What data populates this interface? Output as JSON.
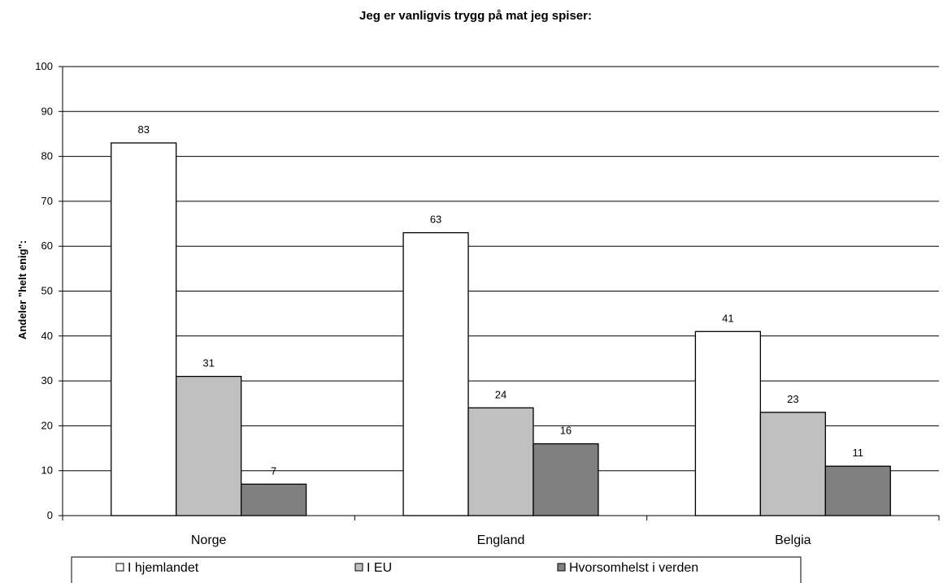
{
  "chart_data": {
    "type": "bar",
    "title": "Jeg er vanligvis trygg på mat jeg spiser:",
    "ylabel": "Andeler \"helt enig\":",
    "xlabel": "",
    "ylim": [
      0,
      100
    ],
    "yticks": [
      0,
      10,
      20,
      30,
      40,
      50,
      60,
      70,
      80,
      90,
      100
    ],
    "grid": true,
    "legend_position": "bottom",
    "categories": [
      "Norge",
      "England",
      "Belgia"
    ],
    "series": [
      {
        "name": "I hjemlandet",
        "values": [
          83,
          63,
          41
        ],
        "color": "#ffffff"
      },
      {
        "name": "I EU",
        "values": [
          31,
          24,
          23
        ],
        "color": "#c0c0c0"
      },
      {
        "name": "Hvorsomhelst i verden",
        "values": [
          7,
          16,
          11
        ],
        "color": "#808080"
      }
    ]
  }
}
